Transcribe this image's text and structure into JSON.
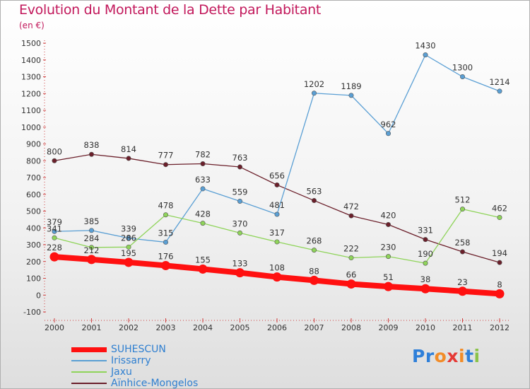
{
  "title": "Evolution du Montant de la Dette par Habitant",
  "subtitle": "(en €)",
  "logo": {
    "text": "Proxiti",
    "letter_colors": [
      "#2e7fd9",
      "#2e7fd9",
      "#f28c28",
      "#e53935",
      "#f28c28",
      "#2e7fd9",
      "#8bc34a"
    ]
  },
  "chart_data": {
    "type": "line",
    "title": "Evolution du Montant de la Dette par Habitant",
    "subtitle": "(en €)",
    "x": [
      "2000",
      "2001",
      "2002",
      "2003",
      "2004",
      "2005",
      "2006",
      "2007",
      "2008",
      "2009",
      "2010",
      "2011",
      "2012"
    ],
    "ylim": [
      -100,
      1500
    ],
    "yticks": [
      "-100",
      "0",
      "100",
      "200",
      "300",
      "400",
      "500",
      "600",
      "700",
      "800",
      "900",
      "1000",
      "1100",
      "1200",
      "1300",
      "1400",
      "1500"
    ],
    "grid": false,
    "legend_position": "bottom-left",
    "series": [
      {
        "name": "Aïnhice-Mongelos",
        "color": "#6b1f2a",
        "values": [
          800,
          838,
          814,
          777,
          782,
          763,
          656,
          563,
          472,
          420,
          331,
          258,
          194
        ],
        "labels": [
          "800",
          "838",
          "814",
          "777",
          "782",
          "763",
          "656",
          "563",
          "472",
          "420",
          "331",
          "258",
          "194"
        ]
      },
      {
        "name": "Irissarry",
        "color": "#5a9fd4",
        "values": [
          379,
          385,
          339,
          315,
          633,
          559,
          481,
          1202,
          1189,
          962,
          1430,
          1300,
          1214
        ],
        "labels": [
          "379",
          "385",
          "339",
          "315",
          "633",
          "559",
          "481",
          "1202",
          "1189",
          "962",
          "1430",
          "1300",
          "1214"
        ]
      },
      {
        "name": "Jaxu",
        "color": "#8fd45a",
        "values": [
          341,
          284,
          286,
          478,
          428,
          370,
          317,
          268,
          222,
          230,
          190,
          512,
          462
        ],
        "labels": [
          "341",
          "284",
          "286",
          "478",
          "428",
          "370",
          "317",
          "268",
          "222",
          "230",
          "190",
          "512",
          "462"
        ]
      },
      {
        "name": "SUHESCUN",
        "color": "#ff1010",
        "values": [
          228,
          212,
          195,
          176,
          155,
          133,
          108,
          88,
          66,
          51,
          38,
          23,
          8
        ],
        "labels": [
          "228",
          "212",
          "195",
          "176",
          "155",
          "133",
          "108",
          "88",
          "66",
          "51",
          "38",
          "23",
          "8"
        ]
      }
    ],
    "legend": [
      "SUHESCUN",
      "Irissarry",
      "Jaxu",
      "Aïnhice-Mongelos"
    ]
  }
}
